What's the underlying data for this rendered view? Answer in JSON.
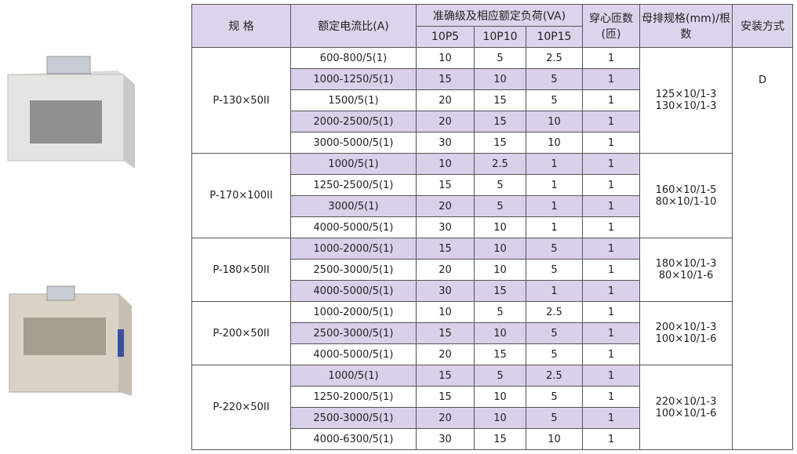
{
  "header": {
    "spec": "规 格",
    "ratio": "额定电流比(A)",
    "accuracy": "准确级及相应额定负荷(VA)",
    "classes": [
      "10P5",
      "10P10",
      "10P15"
    ],
    "turns": "穿心匝数(匝)",
    "busbar": "母排规格(mm)/根数",
    "install": "安装方式"
  },
  "install_value": "D",
  "groups": [
    {
      "spec": "P-130×50II",
      "busbar": [
        "125×10/1-3",
        "130×10/1-3"
      ],
      "rows": [
        [
          "600-800/5(1)",
          "10",
          "5",
          "2.5",
          "1"
        ],
        [
          "1000-1250/5(1)",
          "15",
          "10",
          "5",
          "1"
        ],
        [
          "1500/5(1)",
          "20",
          "15",
          "5",
          "1"
        ],
        [
          "2000-2500/5(1)",
          "20",
          "15",
          "10",
          "1"
        ],
        [
          "3000-5000/5(1)",
          "30",
          "15",
          "10",
          "1"
        ]
      ]
    },
    {
      "spec": "P-170×100II",
      "busbar": [
        "160×10/1-5",
        "80×10/1-10"
      ],
      "rows": [
        [
          "1000/5(1)",
          "10",
          "2.5",
          "1",
          "1"
        ],
        [
          "1250-2500/5(1)",
          "15",
          "5",
          "1",
          "1"
        ],
        [
          "3000/5(1)",
          "20",
          "5",
          "1",
          "1"
        ],
        [
          "4000-5000/5(1)",
          "30",
          "10",
          "1",
          "1"
        ]
      ]
    },
    {
      "spec": "P-180×50II",
      "busbar": [
        "180×10/1-3",
        "80×10/1-6"
      ],
      "rows": [
        [
          "1000-2000/5(1)",
          "15",
          "10",
          "5",
          "1"
        ],
        [
          "2500-3000/5(1)",
          "20",
          "10",
          "5",
          "1"
        ],
        [
          "4000-5000/5(1)",
          "30",
          "15",
          "1",
          "1"
        ]
      ]
    },
    {
      "spec": "P-200×50II",
      "busbar": [
        "200×10/1-3",
        "100×10/1-6"
      ],
      "rows": [
        [
          "1000-2000/5(1)",
          "10",
          "5",
          "2.5",
          "1"
        ],
        [
          "2500-3000/5(1)",
          "15",
          "10",
          "5",
          "1"
        ],
        [
          "4000-5000/5(1)",
          "20",
          "15",
          "5",
          "1"
        ]
      ]
    },
    {
      "spec": "P-220×50II",
      "busbar": [
        "220×10/1-3",
        "100×10/1-6"
      ],
      "rows": [
        [
          "1000/5(1)",
          "15",
          "5",
          "2.5",
          "1"
        ],
        [
          "1250-2000/5(1)",
          "15",
          "10",
          "5",
          "1"
        ],
        [
          "2500-3000/5(1)",
          "20",
          "10",
          "5",
          "1"
        ],
        [
          "4000-6300/5(1)",
          "30",
          "15",
          "10",
          "1"
        ]
      ]
    }
  ]
}
